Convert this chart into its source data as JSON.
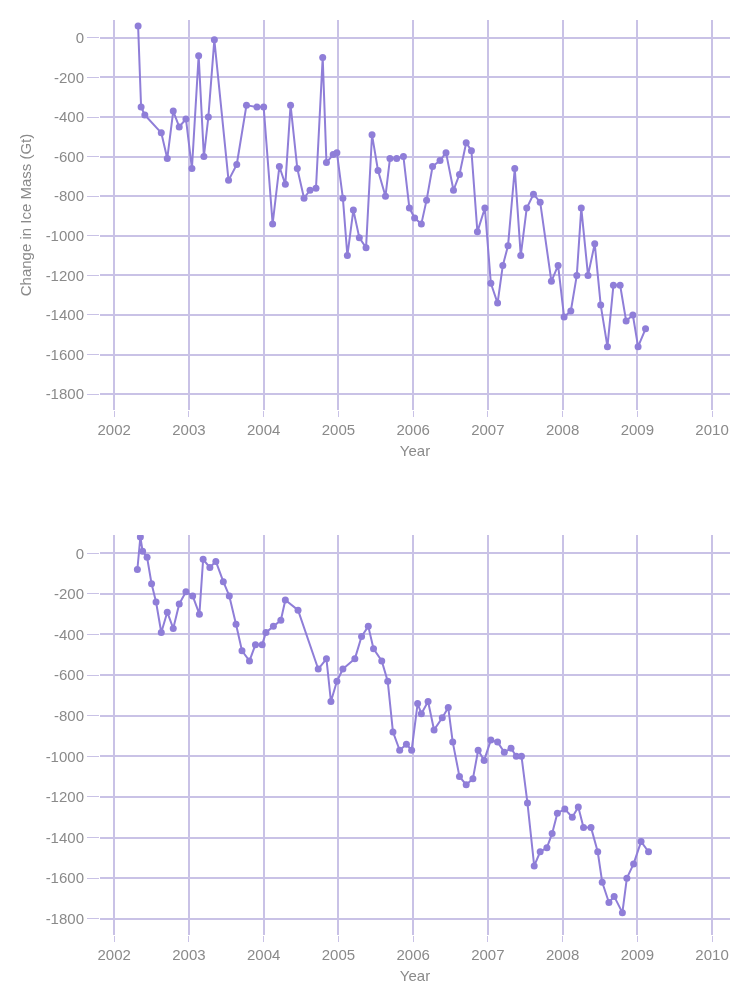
{
  "chart_data": [
    {
      "type": "line",
      "xlabel": "Year",
      "ylabel": "Change in Ice Mass (Gt)",
      "marker": "circle",
      "grid": true,
      "xlim": [
        2001.81,
        2010.24
      ],
      "xticks": [
        2002,
        2003,
        2004,
        2005,
        2006,
        2007,
        2008,
        2009,
        2010
      ],
      "ylim": [
        -1880,
        90
      ],
      "yticks": [
        0,
        -200,
        -400,
        -600,
        -800,
        -1000,
        -1200,
        -1400,
        -1600,
        -1800
      ],
      "series": [
        {
          "color": "#8f7ed8",
          "x": [
            2002.32,
            2002.36,
            2002.41,
            2002.63,
            2002.71,
            2002.79,
            2002.87,
            2002.96,
            2003.04,
            2003.13,
            2003.2,
            2003.26,
            2003.34,
            2003.53,
            2003.64,
            2003.77,
            2003.91,
            2004.0,
            2004.12,
            2004.21,
            2004.29,
            2004.36,
            2004.45,
            2004.54,
            2004.62,
            2004.7,
            2004.79,
            2004.84,
            2004.93,
            2004.98,
            2005.06,
            2005.12,
            2005.2,
            2005.28,
            2005.37,
            2005.45,
            2005.53,
            2005.63,
            2005.69,
            2005.78,
            2005.87,
            2005.95,
            2006.02,
            2006.11,
            2006.18,
            2006.26,
            2006.36,
            2006.44,
            2006.54,
            2006.62,
            2006.71,
            2006.78,
            2006.86,
            2006.96,
            2007.04,
            2007.13,
            2007.2,
            2007.27,
            2007.36,
            2007.44,
            2007.52,
            2007.61,
            2007.7,
            2007.85,
            2007.94,
            2008.02,
            2008.11,
            2008.19,
            2008.25,
            2008.34,
            2008.43,
            2008.51,
            2008.6,
            2008.68,
            2008.77,
            2008.85,
            2008.94,
            2009.01,
            2009.11
          ],
          "values": [
            60,
            -350,
            -390,
            -480,
            -610,
            -370,
            -450,
            -410,
            -660,
            -90,
            -600,
            -400,
            -10,
            -720,
            -640,
            -340,
            -350,
            -350,
            -940,
            -650,
            -740,
            -340,
            -660,
            -810,
            -770,
            -760,
            -100,
            -630,
            -590,
            -580,
            -810,
            -1100,
            -870,
            -1010,
            -1060,
            -490,
            -670,
            -800,
            -610,
            -610,
            -600,
            -860,
            -910,
            -940,
            -820,
            -650,
            -620,
            -580,
            -770,
            -690,
            -530,
            -570,
            -980,
            -860,
            -1240,
            -1340,
            -1150,
            -1050,
            -660,
            -1100,
            -860,
            -790,
            -830,
            -1230,
            -1150,
            -1410,
            -1380,
            -1200,
            -860,
            -1200,
            -1040,
            -1350,
            -1560,
            -1250,
            -1250,
            -1430,
            -1400,
            -1560,
            -1470
          ]
        }
      ]
    },
    {
      "type": "line",
      "xlabel": "Year",
      "marker": "circle",
      "grid": true,
      "xlim": [
        2001.81,
        2010.24
      ],
      "xticks": [
        2002,
        2003,
        2004,
        2005,
        2006,
        2007,
        2008,
        2009,
        2010
      ],
      "ylim": [
        -1880,
        90
      ],
      "yticks": [
        0,
        -200,
        -400,
        -600,
        -800,
        -1000,
        -1200,
        -1400,
        -1600,
        -1800
      ],
      "series": [
        {
          "color": "#8f7ed8",
          "x": [
            2002.31,
            2002.35,
            2002.38,
            2002.44,
            2002.5,
            2002.56,
            2002.63,
            2002.71,
            2002.79,
            2002.87,
            2002.96,
            2003.05,
            2003.14,
            2003.19,
            2003.28,
            2003.36,
            2003.46,
            2003.54,
            2003.63,
            2003.71,
            2003.81,
            2003.89,
            2003.98,
            2004.03,
            2004.13,
            2004.23,
            2004.29,
            2004.46,
            2004.73,
            2004.84,
            2004.9,
            2004.98,
            2005.06,
            2005.22,
            2005.31,
            2005.4,
            2005.47,
            2005.58,
            2005.66,
            2005.73,
            2005.82,
            2005.91,
            2005.98,
            2006.06,
            2006.11,
            2006.2,
            2006.28,
            2006.39,
            2006.47,
            2006.53,
            2006.62,
            2006.71,
            2006.8,
            2006.87,
            2006.95,
            2007.04,
            2007.13,
            2007.22,
            2007.31,
            2007.38,
            2007.45,
            2007.53,
            2007.62,
            2007.7,
            2007.79,
            2007.86,
            2007.93,
            2008.03,
            2008.13,
            2008.21,
            2008.28,
            2008.38,
            2008.47,
            2008.53,
            2008.62,
            2008.69,
            2008.8,
            2008.86,
            2008.95,
            2009.05,
            2009.15
          ],
          "values": [
            -80,
            80,
            10,
            -20,
            -150,
            -240,
            -390,
            -290,
            -370,
            -250,
            -190,
            -210,
            -300,
            -30,
            -70,
            -40,
            -140,
            -210,
            -350,
            -480,
            -530,
            -450,
            -450,
            -390,
            -360,
            -330,
            -230,
            -280,
            -570,
            -520,
            -730,
            -630,
            -570,
            -520,
            -410,
            -360,
            -470,
            -530,
            -630,
            -880,
            -970,
            -940,
            -970,
            -740,
            -790,
            -730,
            -870,
            -810,
            -760,
            -930,
            -1100,
            -1140,
            -1110,
            -970,
            -1020,
            -920,
            -930,
            -980,
            -960,
            -1000,
            -1000,
            -1230,
            -1540,
            -1470,
            -1450,
            -1380,
            -1280,
            -1260,
            -1300,
            -1250,
            -1350,
            -1350,
            -1470,
            -1620,
            -1720,
            -1690,
            -1770,
            -1600,
            -1530,
            -1420,
            -1470
          ]
        }
      ]
    }
  ]
}
